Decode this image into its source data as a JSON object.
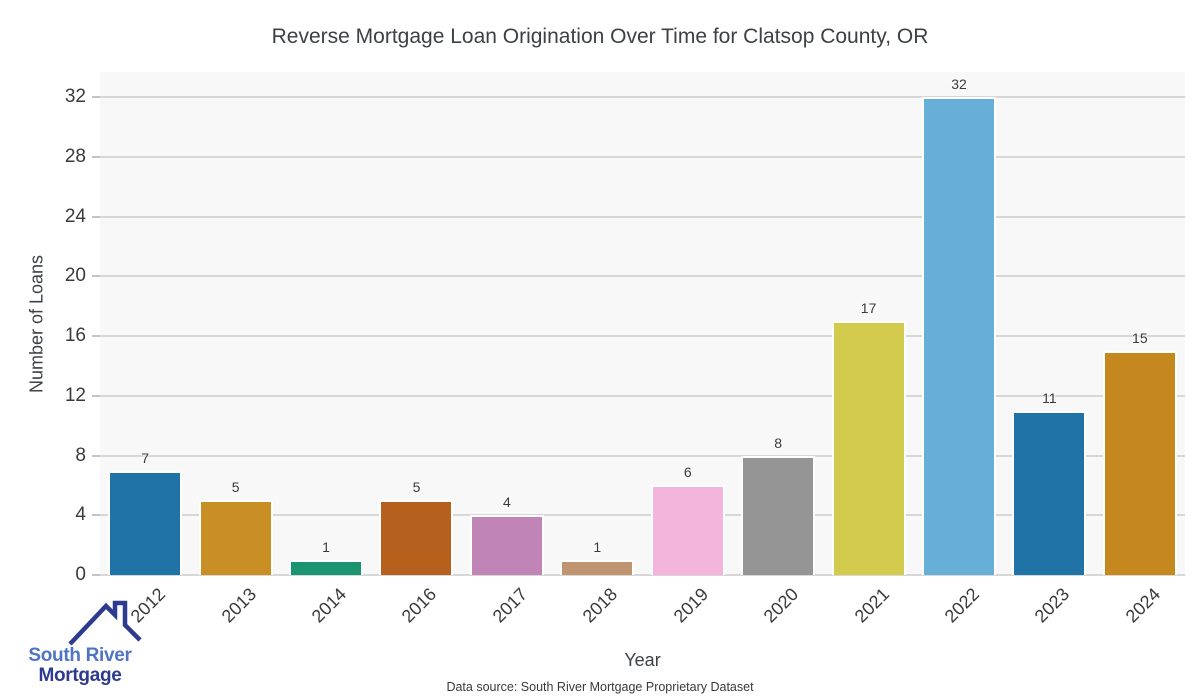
{
  "chart_data": {
    "type": "bar",
    "title": "Reverse Mortgage Loan Origination Over Time for Clatsop County, OR",
    "xlabel": "Year",
    "ylabel": "Number of Loans",
    "categories": [
      "2012",
      "2013",
      "2014",
      "2016",
      "2017",
      "2018",
      "2019",
      "2020",
      "2021",
      "2022",
      "2023",
      "2024"
    ],
    "values": [
      7,
      5,
      1,
      5,
      4,
      1,
      6,
      8,
      17,
      32,
      11,
      15
    ],
    "bar_colors": [
      "#1f73a6",
      "#c88f25",
      "#1b9470",
      "#b5601c",
      "#c184b6",
      "#bf9470",
      "#f3b5dc",
      "#959595",
      "#d3cb4d",
      "#67afd7",
      "#1f73a6",
      "#c4881e"
    ],
    "yticks": [
      0,
      4,
      8,
      12,
      16,
      20,
      24,
      28,
      32
    ],
    "ylim": [
      0,
      33.7
    ],
    "grid": "horizontal",
    "legend": "none",
    "plot_background": "#f8f8f8",
    "gridline_color": "#d7d7d7",
    "tick_color": "#c4c4c4"
  },
  "footer": {
    "data_source": "Data source: South River Mortgage Proprietary Dataset"
  },
  "logo": {
    "line1": "South River",
    "line2": "Mortgage",
    "color_primary": "#4f74c4",
    "color_secondary": "#2d3a8d"
  }
}
